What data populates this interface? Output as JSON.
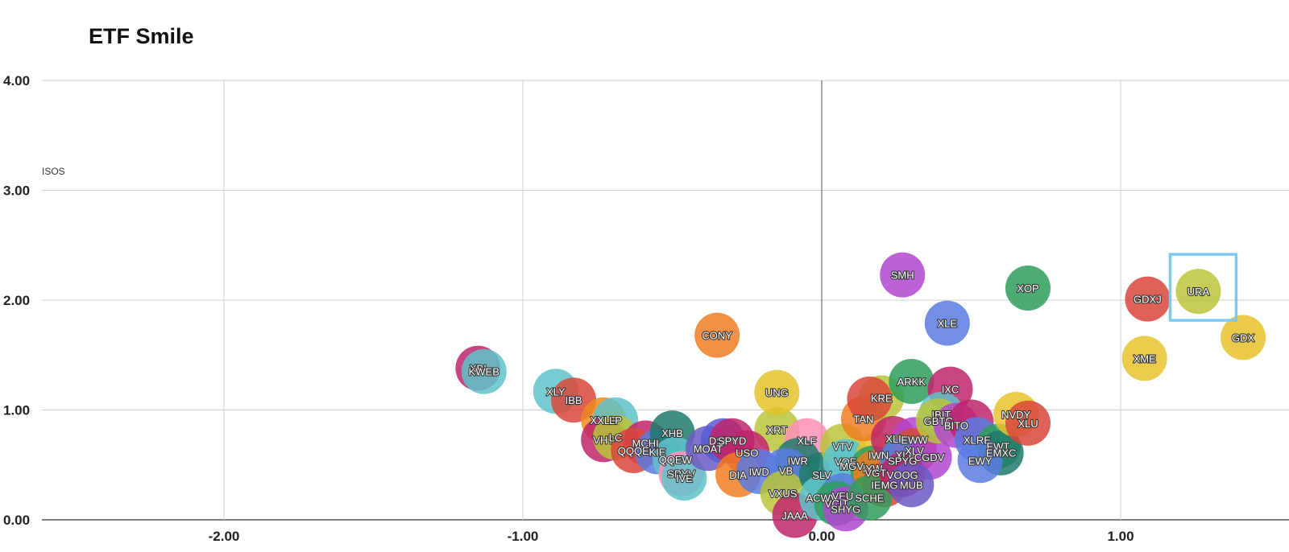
{
  "chart_data": {
    "type": "scatter",
    "title": "ETF Smile",
    "xlabel": "",
    "ylabel": "",
    "series_label": "ISOS",
    "xlim": [
      -2.6,
      1.6
    ],
    "ylim": [
      0,
      4
    ],
    "x_ticks": [
      -2,
      -1,
      0,
      1
    ],
    "x_tick_labels": [
      "-2.00",
      "-1.00",
      "0.00",
      "1.00"
    ],
    "y_ticks": [
      0,
      1,
      2,
      3,
      4
    ],
    "y_tick_labels": [
      "0.00",
      "1.00",
      "2.00",
      "3.00",
      "4.00"
    ],
    "grid": true,
    "highlight": "URA",
    "points": [
      {
        "label": "XRT",
        "x": -0.15,
        "y": 0.82,
        "color": "#b8c43a"
      },
      {
        "label": "UNG",
        "x": -0.15,
        "y": 1.16,
        "color": "#e4c22c"
      },
      {
        "label": "SMH",
        "x": 0.27,
        "y": 2.23,
        "color": "#b145cf"
      },
      {
        "label": "XOP",
        "x": 0.69,
        "y": 2.11,
        "color": "#2e9e5b"
      },
      {
        "label": "GDXJ",
        "x": 1.09,
        "y": 2.01,
        "color": "#d9473b"
      },
      {
        "label": "URA",
        "x": 1.26,
        "y": 2.08,
        "color": "#bcc43a"
      },
      {
        "label": "GDX",
        "x": 1.41,
        "y": 1.66,
        "color": "#e8c12c"
      },
      {
        "label": "XME",
        "x": 1.08,
        "y": 1.47,
        "color": "#e6c22c"
      },
      {
        "label": "XLE",
        "x": 0.42,
        "y": 1.79,
        "color": "#5b7be0"
      },
      {
        "label": "CONY",
        "x": -0.35,
        "y": 1.68,
        "color": "#f07d22"
      },
      {
        "label": "XBI",
        "x": -1.15,
        "y": 1.38,
        "color": "#c0246b"
      },
      {
        "label": "KWEB",
        "x": -1.13,
        "y": 1.35,
        "color": "#5fc3c9"
      },
      {
        "label": "XLY",
        "x": -0.89,
        "y": 1.17,
        "color": "#5fc3c9"
      },
      {
        "label": "IBB",
        "x": -0.83,
        "y": 1.09,
        "color": "#d9473b"
      },
      {
        "label": "XXLP",
        "x": -0.73,
        "y": 0.91,
        "color": "#f08a1e"
      },
      {
        "label": "LP",
        "x": -0.69,
        "y": 0.91,
        "color": "#5fc3c9"
      },
      {
        "label": "VHT",
        "x": -0.73,
        "y": 0.73,
        "color": "#c0246b"
      },
      {
        "label": "LC",
        "x": -0.69,
        "y": 0.75,
        "color": "#b8c43a"
      },
      {
        "label": "MCHI",
        "x": -0.59,
        "y": 0.7,
        "color": "#c0246b"
      },
      {
        "label": "QQQE",
        "x": -0.63,
        "y": 0.63,
        "color": "#d9473b"
      },
      {
        "label": "KIE",
        "x": -0.55,
        "y": 0.62,
        "color": "#5b7be0"
      },
      {
        "label": "XHB",
        "x": -0.5,
        "y": 0.79,
        "color": "#1f7a6b"
      },
      {
        "label": "QQEW",
        "x": -0.49,
        "y": 0.55,
        "color": "#5fc3c9"
      },
      {
        "label": "SPYV",
        "x": -0.47,
        "y": 0.42,
        "color": "#ff8fb8"
      },
      {
        "label": "IVE",
        "x": -0.46,
        "y": 0.38,
        "color": "#5fc3c9"
      },
      {
        "label": "MOAT",
        "x": -0.38,
        "y": 0.65,
        "color": "#6b5bc4"
      },
      {
        "label": "DSPY",
        "x": -0.33,
        "y": 0.72,
        "color": "#5b5bd6"
      },
      {
        "label": "SPYD",
        "x": -0.3,
        "y": 0.72,
        "color": "#c0246b"
      },
      {
        "label": "USO",
        "x": -0.25,
        "y": 0.61,
        "color": "#c0246b"
      },
      {
        "label": "DIA",
        "x": -0.28,
        "y": 0.41,
        "color": "#f07d22"
      },
      {
        "label": "IWD",
        "x": -0.21,
        "y": 0.44,
        "color": "#5b7be0"
      },
      {
        "label": "XLF",
        "x": -0.05,
        "y": 0.72,
        "color": "#ff8fb8"
      },
      {
        "label": "IWR",
        "x": -0.08,
        "y": 0.54,
        "color": "#1f7a6b"
      },
      {
        "label": "VB",
        "x": -0.12,
        "y": 0.45,
        "color": "#5b7be0"
      },
      {
        "label": "VXUS",
        "x": -0.13,
        "y": 0.24,
        "color": "#b8c43a"
      },
      {
        "label": "SLV",
        "x": 0.0,
        "y": 0.41,
        "color": "#1f7a6b"
      },
      {
        "label": "JAAA",
        "x": -0.09,
        "y": 0.04,
        "color": "#c0246b"
      },
      {
        "label": "VTV",
        "x": 0.07,
        "y": 0.67,
        "color": "#b8c43a"
      },
      {
        "label": "VOE",
        "x": 0.08,
        "y": 0.53,
        "color": "#5fc3c9"
      },
      {
        "label": "MGV",
        "x": 0.1,
        "y": 0.49,
        "color": "#5fc3c9"
      },
      {
        "label": "ACWV",
        "x": 0.0,
        "y": 0.2,
        "color": "#5fc3c9"
      },
      {
        "label": "VEU",
        "x": 0.07,
        "y": 0.22,
        "color": "#5b7be0"
      },
      {
        "label": "VCIT",
        "x": 0.05,
        "y": 0.15,
        "color": "#2e9e5b"
      },
      {
        "label": "SHYG",
        "x": 0.08,
        "y": 0.1,
        "color": "#b145cf"
      },
      {
        "label": "IWN",
        "x": 0.19,
        "y": 0.59,
        "color": "#e6c22c"
      },
      {
        "label": "IYW",
        "x": 0.17,
        "y": 0.47,
        "color": "#2e9e5b"
      },
      {
        "label": "VGT",
        "x": 0.18,
        "y": 0.43,
        "color": "#f07d22"
      },
      {
        "label": "IEMG",
        "x": 0.21,
        "y": 0.32,
        "color": "#d9473b"
      },
      {
        "label": "SCHE",
        "x": 0.16,
        "y": 0.2,
        "color": "#2e9e5b"
      },
      {
        "label": "TAN",
        "x": 0.14,
        "y": 0.92,
        "color": "#f07d22"
      },
      {
        "label": "KRE",
        "x": 0.2,
        "y": 1.11,
        "color": "#b8c43a"
      },
      {
        "label": "KIE2",
        "x": 0.16,
        "y": 1.1,
        "color": "#d9473b",
        "hidden_label": true
      },
      {
        "label": "ARKK",
        "x": 0.3,
        "y": 1.26,
        "color": "#2e9e5b"
      },
      {
        "label": "XLI",
        "x": 0.24,
        "y": 0.74,
        "color": "#c0246b"
      },
      {
        "label": "EWW",
        "x": 0.31,
        "y": 0.73,
        "color": "#b145cf"
      },
      {
        "label": "XLB",
        "x": 0.28,
        "y": 0.59,
        "color": "#2e9e5b"
      },
      {
        "label": "XLV",
        "x": 0.31,
        "y": 0.63,
        "color": "#d9473b"
      },
      {
        "label": "SPYG",
        "x": 0.27,
        "y": 0.54,
        "color": "#5b7be0"
      },
      {
        "label": "CGDV",
        "x": 0.36,
        "y": 0.57,
        "color": "#b145cf"
      },
      {
        "label": "VOOG",
        "x": 0.27,
        "y": 0.41,
        "color": "#c0246b"
      },
      {
        "label": "MUB",
        "x": 0.3,
        "y": 0.32,
        "color": "#6b5bc4"
      },
      {
        "label": "IXC",
        "x": 0.43,
        "y": 1.19,
        "color": "#c0246b"
      },
      {
        "label": "IBIT",
        "x": 0.4,
        "y": 0.96,
        "color": "#5fc3c9"
      },
      {
        "label": "GBTC",
        "x": 0.39,
        "y": 0.9,
        "color": "#b8c43a"
      },
      {
        "label": "BITO",
        "x": 0.45,
        "y": 0.86,
        "color": "#b145cf"
      },
      {
        "label": "XLI2",
        "x": 0.5,
        "y": 0.89,
        "color": "#c0246b",
        "hidden_label": true
      },
      {
        "label": "XLRE",
        "x": 0.52,
        "y": 0.73,
        "color": "#5b7be0"
      },
      {
        "label": "EWT",
        "x": 0.59,
        "y": 0.67,
        "color": "#2e9e5b"
      },
      {
        "label": "EMXC",
        "x": 0.6,
        "y": 0.61,
        "color": "#1f7a6b"
      },
      {
        "label": "EWY",
        "x": 0.53,
        "y": 0.54,
        "color": "#5b7be0"
      },
      {
        "label": "NVDY",
        "x": 0.65,
        "y": 0.96,
        "color": "#e6c22c"
      },
      {
        "label": "XLU",
        "x": 0.69,
        "y": 0.88,
        "color": "#d9473b"
      }
    ]
  }
}
